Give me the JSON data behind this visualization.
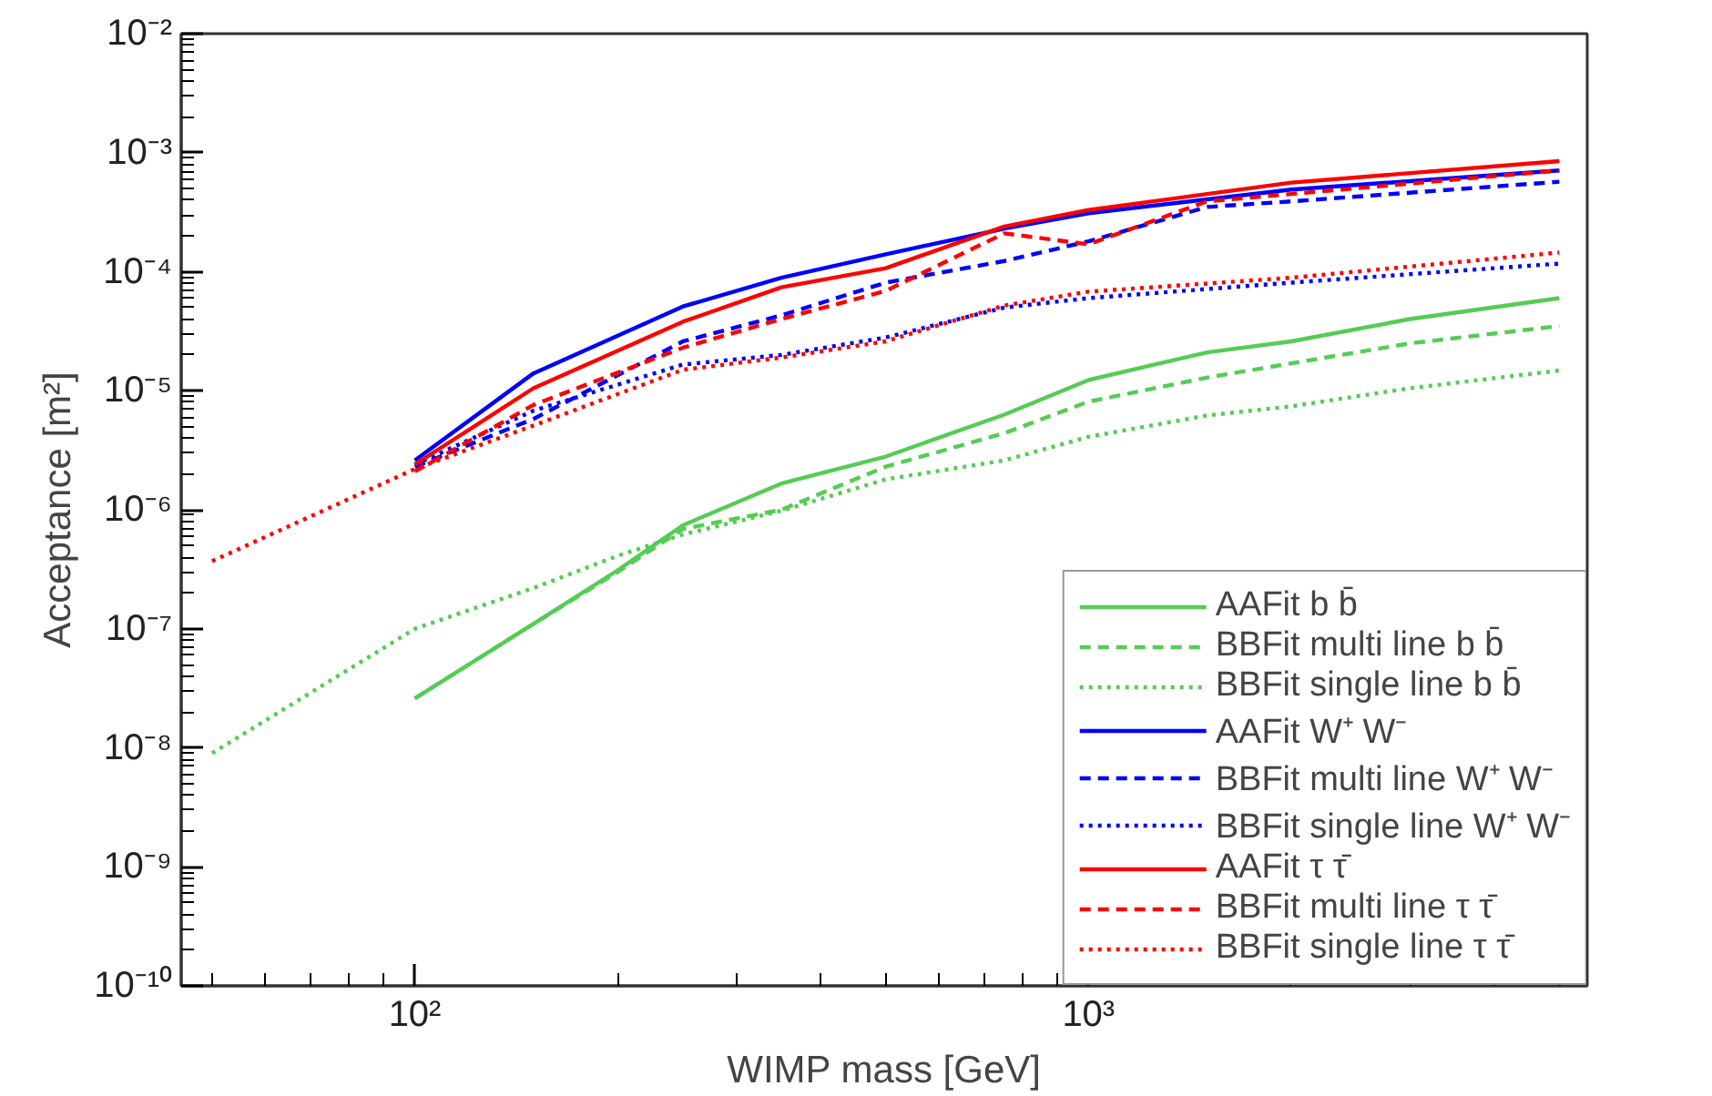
{
  "chart_data": {
    "type": "line",
    "xlabel": "WIMP mass [GeV]",
    "ylabel": "Acceptance [m²]",
    "log": "xy",
    "grid": false,
    "legend": "bottom right",
    "marker": "none",
    "xlim": [
      45,
      5500
    ],
    "ylim": [
      1e-10,
      0.01
    ],
    "xticks": [
      {
        "value": 50,
        "label": null
      },
      {
        "value": 60,
        "label": null
      },
      {
        "value": 70,
        "label": null
      },
      {
        "value": 80,
        "label": null
      },
      {
        "value": 90,
        "label": null
      },
      {
        "value": 100,
        "label": "10²"
      },
      {
        "value": 200,
        "label": null
      },
      {
        "value": 300,
        "label": null
      },
      {
        "value": 400,
        "label": null
      },
      {
        "value": 500,
        "label": null
      },
      {
        "value": 600,
        "label": null
      },
      {
        "value": 700,
        "label": null
      },
      {
        "value": 800,
        "label": null
      },
      {
        "value": 900,
        "label": null
      },
      {
        "value": 1000,
        "label": "10³"
      },
      {
        "value": 2000,
        "label": null
      },
      {
        "value": 3000,
        "label": null
      },
      {
        "value": 4000,
        "label": null
      },
      {
        "value": 5000,
        "label": null
      }
    ],
    "yticks": [
      {
        "value": 1e-10,
        "label": "10⁻¹⁰"
      },
      {
        "value": 2e-10,
        "label": null
      },
      {
        "value": 3e-10,
        "label": null
      },
      {
        "value": 4e-10,
        "label": null
      },
      {
        "value": 5e-10,
        "label": null
      },
      {
        "value": 6e-10,
        "label": null
      },
      {
        "value": 7e-10,
        "label": null
      },
      {
        "value": 8e-10,
        "label": null
      },
      {
        "value": 9e-10,
        "label": null
      },
      {
        "value": 1e-09,
        "label": "10⁻⁹"
      },
      {
        "value": 2e-09,
        "label": null
      },
      {
        "value": 3e-09,
        "label": null
      },
      {
        "value": 4e-09,
        "label": null
      },
      {
        "value": 5e-09,
        "label": null
      },
      {
        "value": 6e-09,
        "label": null
      },
      {
        "value": 7e-09,
        "label": null
      },
      {
        "value": 8e-09,
        "label": null
      },
      {
        "value": 9e-09,
        "label": null
      },
      {
        "value": 1e-08,
        "label": "10⁻⁸"
      },
      {
        "value": 2e-08,
        "label": null
      },
      {
        "value": 3e-08,
        "label": null
      },
      {
        "value": 4e-08,
        "label": null
      },
      {
        "value": 5e-08,
        "label": null
      },
      {
        "value": 6e-08,
        "label": null
      },
      {
        "value": 7e-08,
        "label": null
      },
      {
        "value": 8e-08,
        "label": null
      },
      {
        "value": 9e-08,
        "label": null
      },
      {
        "value": 1e-07,
        "label": "10⁻⁷"
      },
      {
        "value": 2e-07,
        "label": null
      },
      {
        "value": 3e-07,
        "label": null
      },
      {
        "value": 4e-07,
        "label": null
      },
      {
        "value": 5e-07,
        "label": null
      },
      {
        "value": 6e-07,
        "label": null
      },
      {
        "value": 7e-07,
        "label": null
      },
      {
        "value": 8e-07,
        "label": null
      },
      {
        "value": 9e-07,
        "label": null
      },
      {
        "value": 1e-06,
        "label": "10⁻⁶"
      },
      {
        "value": 2e-06,
        "label": null
      },
      {
        "value": 3e-06,
        "label": null
      },
      {
        "value": 4e-06,
        "label": null
      },
      {
        "value": 5e-06,
        "label": null
      },
      {
        "value": 6e-06,
        "label": null
      },
      {
        "value": 7e-06,
        "label": null
      },
      {
        "value": 8e-06,
        "label": null
      },
      {
        "value": 9e-06,
        "label": null
      },
      {
        "value": 1e-05,
        "label": "10⁻⁵"
      },
      {
        "value": 2e-05,
        "label": null
      },
      {
        "value": 3e-05,
        "label": null
      },
      {
        "value": 4e-05,
        "label": null
      },
      {
        "value": 5e-05,
        "label": null
      },
      {
        "value": 6e-05,
        "label": null
      },
      {
        "value": 7e-05,
        "label": null
      },
      {
        "value": 8e-05,
        "label": null
      },
      {
        "value": 9e-05,
        "label": null
      },
      {
        "value": 0.0001,
        "label": "10⁻⁴"
      },
      {
        "value": 0.0002,
        "label": null
      },
      {
        "value": 0.0003,
        "label": null
      },
      {
        "value": 0.0004,
        "label": null
      },
      {
        "value": 0.0005,
        "label": null
      },
      {
        "value": 0.0006,
        "label": null
      },
      {
        "value": 0.0007,
        "label": null
      },
      {
        "value": 0.0008,
        "label": null
      },
      {
        "value": 0.0009,
        "label": null
      },
      {
        "value": 0.001,
        "label": "10⁻³"
      },
      {
        "value": 0.002,
        "label": null
      },
      {
        "value": 0.003,
        "label": null
      },
      {
        "value": 0.004,
        "label": null
      },
      {
        "value": 0.005,
        "label": null
      },
      {
        "value": 0.006,
        "label": null
      },
      {
        "value": 0.007,
        "label": null
      },
      {
        "value": 0.008,
        "label": null
      },
      {
        "value": 0.009,
        "label": null
      },
      {
        "value": 0.01,
        "label": "10⁻²"
      }
    ],
    "series": [
      {
        "name": "AAFit b b̄",
        "color": "#55cc55",
        "line_style": "solid",
        "x": [
          100,
          150,
          200,
          250,
          350,
          500,
          750,
          1000,
          1500,
          2000,
          3000,
          5000
        ],
        "values": [
          2.6e-08,
          1.1e-07,
          3.1e-07,
          7.4e-07,
          1.66e-06,
          2.8e-06,
          6.3e-06,
          1.23e-05,
          2.1e-05,
          2.6e-05,
          4e-05,
          6e-05
        ]
      },
      {
        "name": "BBFit multi line b b̄",
        "color": "#55cc55",
        "line_style": "dashed",
        "x": [
          100,
          150,
          200,
          250,
          350,
          500,
          750,
          1000,
          1500,
          2000,
          3000,
          5000
        ],
        "values": [
          2.6e-08,
          1.1e-07,
          3e-07,
          6.9e-07,
          1e-06,
          2.3e-06,
          4.4e-06,
          8.1e-06,
          1.29e-05,
          1.7e-05,
          2.5e-05,
          3.5e-05
        ]
      },
      {
        "name": "BBFit single line b b̄",
        "color": "#55cc55",
        "line_style": "dotted",
        "x": [
          50,
          100,
          150,
          200,
          250,
          350,
          500,
          750,
          1000,
          1500,
          2000,
          3000,
          5000
        ],
        "values": [
          9e-09,
          1e-07,
          2.2e-07,
          4.1e-07,
          6.2e-07,
          9.8e-07,
          1.8e-06,
          2.6e-06,
          4.1e-06,
          6.2e-06,
          7.4e-06,
          1.05e-05,
          1.48e-05
        ]
      },
      {
        "name": "AAFit W⁺ W⁻",
        "color": "#0000ff",
        "line_style": "solid",
        "x": [
          100,
          150,
          250,
          350,
          500,
          750,
          1000,
          2000,
          5000
        ],
        "values": [
          2.6e-06,
          1.4e-05,
          5.1e-05,
          8.9e-05,
          0.00014,
          0.00023,
          0.00031,
          0.00049,
          0.00071
        ]
      },
      {
        "name": "BBFit multi line W⁺ W⁻",
        "color": "#0000ff",
        "line_style": "dashed",
        "x": [
          100,
          150,
          250,
          350,
          500,
          750,
          1000,
          1500,
          2000,
          5000
        ],
        "values": [
          2.3e-06,
          5.8e-06,
          2.6e-05,
          4.3e-05,
          8.1e-05,
          0.000123,
          0.00018,
          0.00035,
          0.00039,
          0.00057
        ]
      },
      {
        "name": "BBFit single line W⁺ W⁻",
        "color": "#0000ff",
        "line_style": "dotted",
        "x": [
          100,
          150,
          250,
          350,
          500,
          750,
          1000,
          2000,
          5000
        ],
        "values": [
          2.4e-06,
          6.8e-06,
          1.66e-05,
          2e-05,
          2.8e-05,
          5e-05,
          6e-05,
          8.1e-05,
          0.000117
        ]
      },
      {
        "name": "AAFit τ τ̄",
        "color": "#ff0000",
        "line_style": "solid",
        "x": [
          100,
          150,
          250,
          350,
          500,
          750,
          1000,
          2000,
          5000
        ],
        "values": [
          2.4e-06,
          1.05e-05,
          3.8e-05,
          7.4e-05,
          0.000107,
          0.00024,
          0.00033,
          0.00056,
          0.00085
        ]
      },
      {
        "name": "BBFit multi line τ τ̄",
        "color": "#ff0000",
        "line_style": "dashed",
        "x": [
          100,
          150,
          250,
          350,
          500,
          750,
          1000,
          1500,
          2000,
          5000
        ],
        "values": [
          2.1e-06,
          7.6e-06,
          2.3e-05,
          4e-05,
          6.9e-05,
          0.00021,
          0.00017,
          0.00039,
          0.00045,
          0.00071
        ]
      },
      {
        "name": "BBFit single line τ τ̄",
        "color": "#ff0000",
        "line_style": "dotted",
        "x": [
          50,
          100,
          150,
          250,
          350,
          500,
          750,
          1000,
          2000,
          5000
        ],
        "values": [
          3.7e-07,
          2.2e-06,
          5.1e-06,
          1.5e-05,
          1.9e-05,
          2.6e-05,
          5.2e-05,
          6.8e-05,
          8.9e-05,
          0.000145
        ]
      }
    ]
  }
}
